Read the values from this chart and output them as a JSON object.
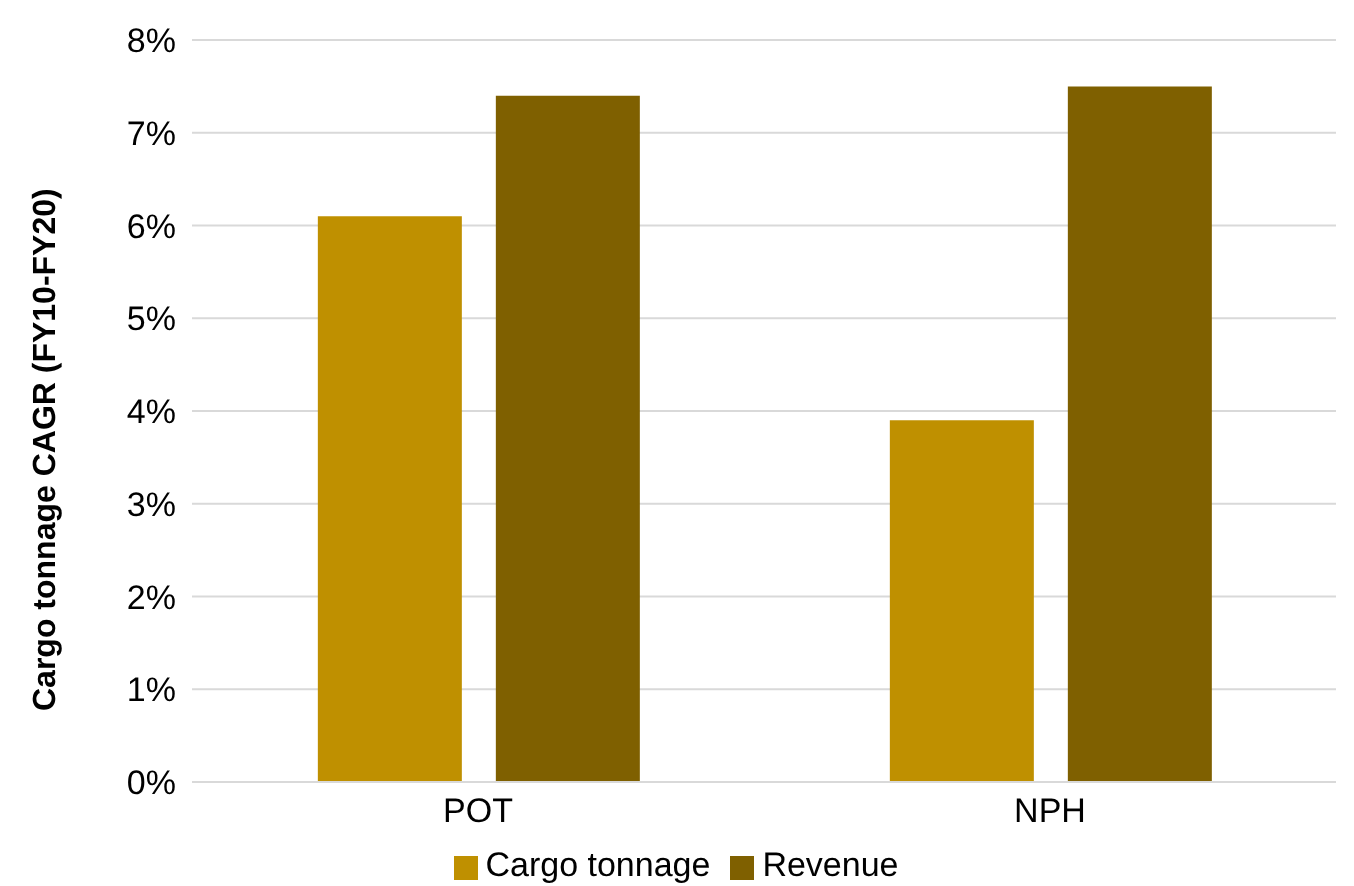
{
  "chart_data": {
    "type": "bar",
    "ylabel": "Cargo tonnage CAGR (FY10-FY20)",
    "categories": [
      "POT",
      "NPH"
    ],
    "series": [
      {
        "name": "Cargo tonnage",
        "color": "#bf9000",
        "values": [
          6.1,
          3.9
        ]
      },
      {
        "name": "Revenue",
        "color": "#7f6000",
        "values": [
          7.4,
          7.5
        ]
      }
    ],
    "ylim": [
      0,
      8
    ],
    "yticks": [
      {
        "value": 0,
        "label": "0%"
      },
      {
        "value": 1,
        "label": "1%"
      },
      {
        "value": 2,
        "label": "2%"
      },
      {
        "value": 3,
        "label": "3%"
      },
      {
        "value": 4,
        "label": "4%"
      },
      {
        "value": 5,
        "label": "5%"
      },
      {
        "value": 6,
        "label": "6%"
      },
      {
        "value": 7,
        "label": "7%"
      },
      {
        "value": 8,
        "label": "8%"
      }
    ],
    "grid": "y",
    "legend": "bottom"
  }
}
